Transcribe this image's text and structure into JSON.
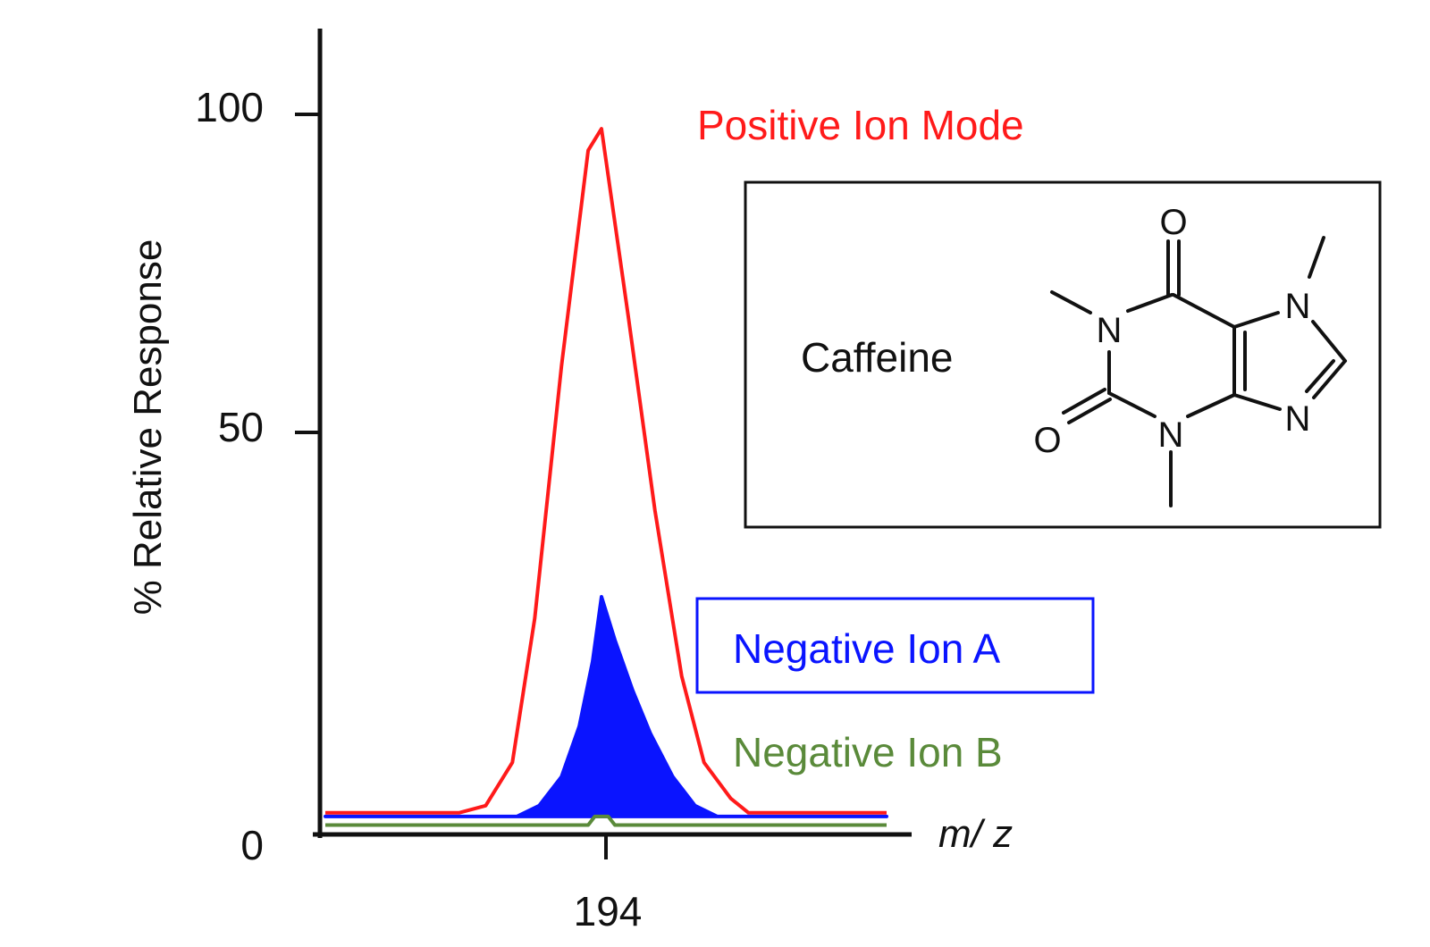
{
  "chart_data": {
    "type": "line",
    "ylabel": "% Relative Response",
    "xlabel_italic": "m/ z",
    "y_ticks": [
      "0",
      "50",
      "100"
    ],
    "x_ticks": [
      "194"
    ],
    "ylim": [
      0,
      112
    ],
    "grid": false,
    "series": [
      {
        "name": "Positive Ion Mode",
        "color": "#ff1a1a",
        "style": "line",
        "x": [
          187.7,
          190.7,
          191.3,
          191.9,
          192.4,
          193.0,
          193.6,
          193.9,
          194.5,
          195.1,
          195.7,
          196.2,
          196.8,
          197.2,
          198.0,
          200.3
        ],
        "y": [
          3,
          3,
          4,
          10,
          30,
          65,
          95,
          98,
          72,
          45,
          22,
          10,
          5,
          3,
          3,
          3
        ]
      },
      {
        "name": "Negative Ion A",
        "color": "#0a14ff",
        "style": "filled",
        "x": [
          187.7,
          192.0,
          192.5,
          193.0,
          193.4,
          193.7,
          193.9,
          194.2,
          194.6,
          195.0,
          195.5,
          196.0,
          196.5,
          200.3
        ],
        "y": [
          2.5,
          2.5,
          4,
          8,
          15,
          24,
          33,
          27,
          20,
          14,
          8,
          4,
          2.5,
          2.5
        ]
      },
      {
        "name": "Negative Ion B",
        "color": "#5a8a3a",
        "style": "line",
        "x": [
          187.7,
          193.6,
          193.75,
          194.05,
          194.2,
          200.3
        ],
        "y": [
          1.3,
          1.3,
          2.5,
          2.5,
          1.3,
          1.3
        ]
      }
    ],
    "legend": {
      "positive": "Positive Ion Mode",
      "negative_a": "Negative Ion A",
      "negative_b": "Negative Ion B"
    },
    "annotation": {
      "compound": "Caffeine",
      "atoms": {
        "o_top": "O",
        "o_left": "O",
        "n1": "N",
        "n3": "N",
        "n7": "N",
        "n9": "N"
      }
    }
  }
}
